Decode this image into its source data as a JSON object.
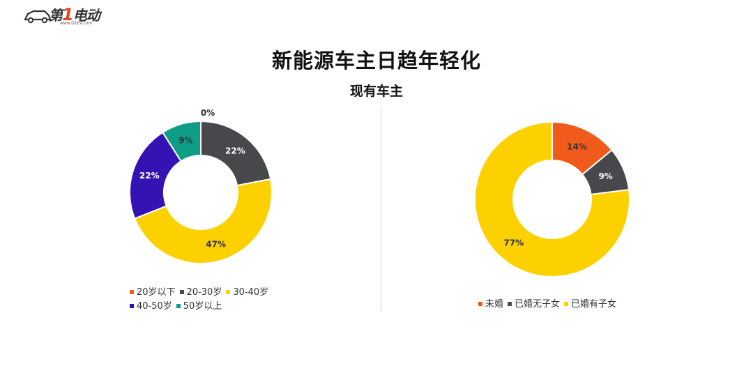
{
  "logo": {
    "name_prefix": "第",
    "name_one": "1",
    "name_suffix": "电动",
    "url": "www.D1EV.com"
  },
  "title": "新能源车主日趋年轻化",
  "subtitle": "现有车主",
  "chart_data": [
    {
      "type": "pie",
      "donut": true,
      "categories": [
        "20岁以下",
        "20-30岁",
        "30-40岁",
        "40-50岁",
        "50岁以上"
      ],
      "values": [
        0,
        22,
        47,
        22,
        9
      ],
      "labels": [
        "0%",
        "22%",
        "47%",
        "22%",
        "9%"
      ],
      "colors": [
        "#f05a1a",
        "#46484b",
        "#fdd000",
        "#3512b3",
        "#0e9e86"
      ],
      "label_colors": [
        "#333333",
        "#ffffff",
        "#333333",
        "#ffffff",
        "#333333"
      ],
      "legend_position": "bottom"
    },
    {
      "type": "pie",
      "donut": true,
      "categories": [
        "未婚",
        "已婚无子女",
        "已婚有子女"
      ],
      "values": [
        14,
        9,
        77
      ],
      "labels": [
        "14%",
        "9%",
        "77%"
      ],
      "colors": [
        "#f05a1a",
        "#46484b",
        "#fdd000"
      ],
      "label_colors": [
        "#333333",
        "#ffffff",
        "#333333"
      ],
      "legend_position": "bottom"
    }
  ]
}
